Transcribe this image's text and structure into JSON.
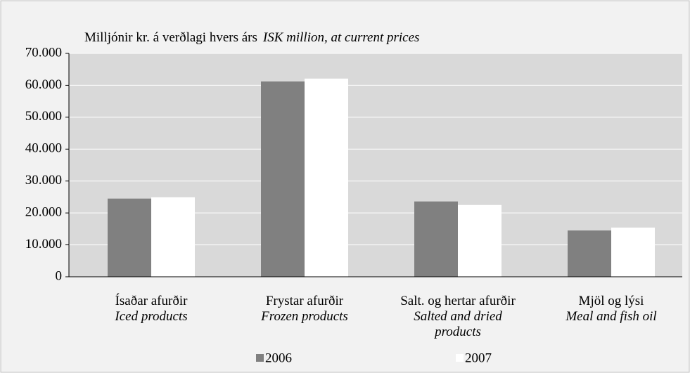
{
  "chart_data": {
    "type": "bar",
    "title": "Milljónir kr. á verðlagi hvers árs",
    "subtitle": "ISK million, at current prices",
    "categories": [
      "Ísaðar afurðir",
      "Frystar afurðir",
      "Salt. og hertar afurðir",
      "Mjöl og lýsi"
    ],
    "categories_en": [
      "Iced products",
      "Frozen products",
      "Salted and dried products",
      "Meal and fish oil"
    ],
    "series": [
      {
        "name": "2006",
        "color": "#808080",
        "values": [
          24500,
          61200,
          23600,
          14500
        ]
      },
      {
        "name": "2007",
        "color": "#ffffff",
        "values": [
          24900,
          62100,
          22500,
          15400
        ]
      }
    ],
    "ylim": [
      0,
      70000
    ],
    "yticks": [
      0,
      {
        "value": 10000,
        "label": "10.000"
      },
      {
        "value": 20000,
        "label": "20.000"
      },
      {
        "value": 30000,
        "label": "30.000"
      },
      {
        "value": 40000,
        "label": "40.000"
      },
      {
        "value": 50000,
        "label": "50.000"
      },
      {
        "value": 60000,
        "label": "60.000"
      },
      {
        "value": 70000,
        "label": "70.000"
      }
    ],
    "grid": true,
    "legend": "bottom"
  }
}
